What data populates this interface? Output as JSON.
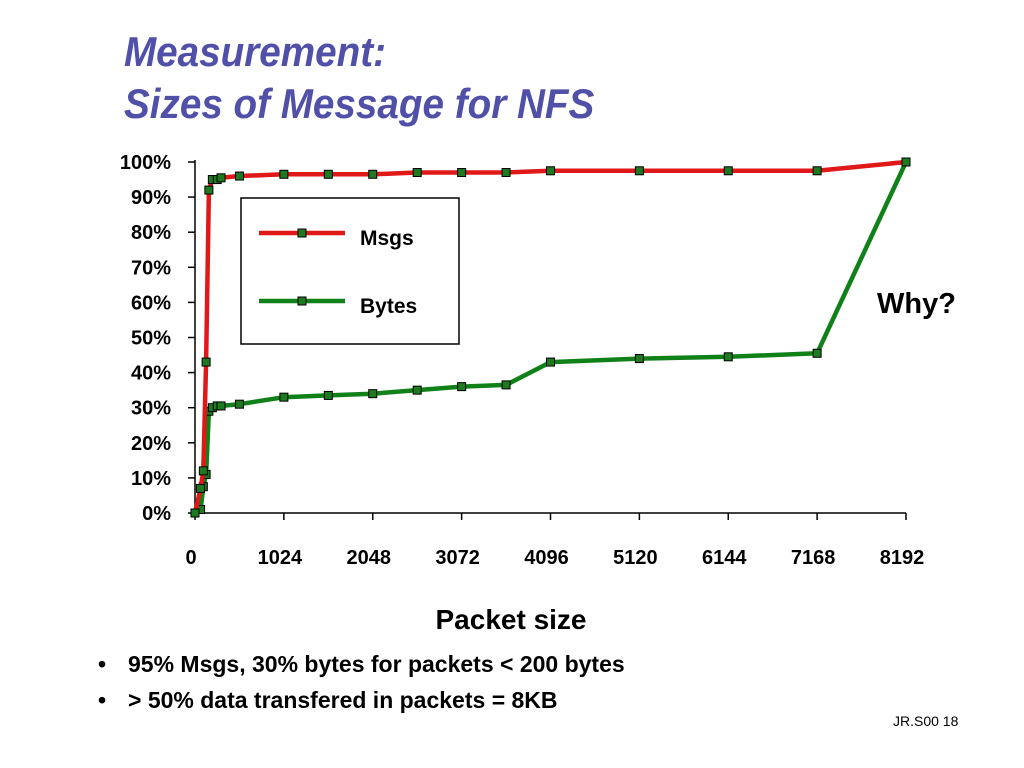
{
  "slide": {
    "title_line1": "Measurement:",
    "title_line2": "Sizes of Message for NFS",
    "footer": "JR.S00 18",
    "bullets": [
      "95% Msgs, 30% bytes for packets < 200 bytes",
      "> 50% data transfered in packets = 8KB"
    ],
    "colors": {
      "title": "#5050a8",
      "msgs": "#e01818",
      "bytes": "#108018",
      "marker_fill": "#1e7a1e"
    }
  },
  "chart_data": {
    "type": "line",
    "xlabel": "Packet size",
    "ylabel": "",
    "xlim": [
      0,
      8192
    ],
    "ylim": [
      0,
      100
    ],
    "x_ticks": [
      "0",
      "1024",
      "2048",
      "3072",
      "4096",
      "5120",
      "6144",
      "7168",
      "8192"
    ],
    "y_ticks": [
      "0%",
      "10%",
      "20%",
      "30%",
      "40%",
      "50%",
      "60%",
      "70%",
      "80%",
      "90%",
      "100%"
    ],
    "legend_position": "upper-left inside plot",
    "annotation": "Why?",
    "grid": false,
    "series": [
      {
        "name": "Msgs",
        "color": "#e01818",
        "points": [
          [
            0,
            0
          ],
          [
            64,
            7
          ],
          [
            96,
            12
          ],
          [
            128,
            43
          ],
          [
            160,
            92
          ],
          [
            200,
            95
          ],
          [
            256,
            95
          ],
          [
            300,
            95.5
          ],
          [
            512,
            96
          ],
          [
            1024,
            96.5
          ],
          [
            1536,
            96.5
          ],
          [
            2048,
            96.5
          ],
          [
            2560,
            97
          ],
          [
            3072,
            97
          ],
          [
            3584,
            97
          ],
          [
            4096,
            97.5
          ],
          [
            5120,
            97.5
          ],
          [
            6144,
            97.5
          ],
          [
            7168,
            97.5
          ],
          [
            8192,
            100
          ]
        ]
      },
      {
        "name": "Bytes",
        "color": "#108018",
        "points": [
          [
            0,
            0
          ],
          [
            64,
            1
          ],
          [
            96,
            7.5
          ],
          [
            128,
            11
          ],
          [
            160,
            29
          ],
          [
            200,
            30
          ],
          [
            256,
            30.5
          ],
          [
            300,
            30.5
          ],
          [
            512,
            31
          ],
          [
            1024,
            33
          ],
          [
            1536,
            33.5
          ],
          [
            2048,
            34
          ],
          [
            2560,
            35
          ],
          [
            3072,
            36
          ],
          [
            3584,
            36.5
          ],
          [
            4096,
            43
          ],
          [
            5120,
            44
          ],
          [
            6144,
            44.5
          ],
          [
            7168,
            45.5
          ],
          [
            8192,
            100
          ]
        ]
      }
    ]
  }
}
